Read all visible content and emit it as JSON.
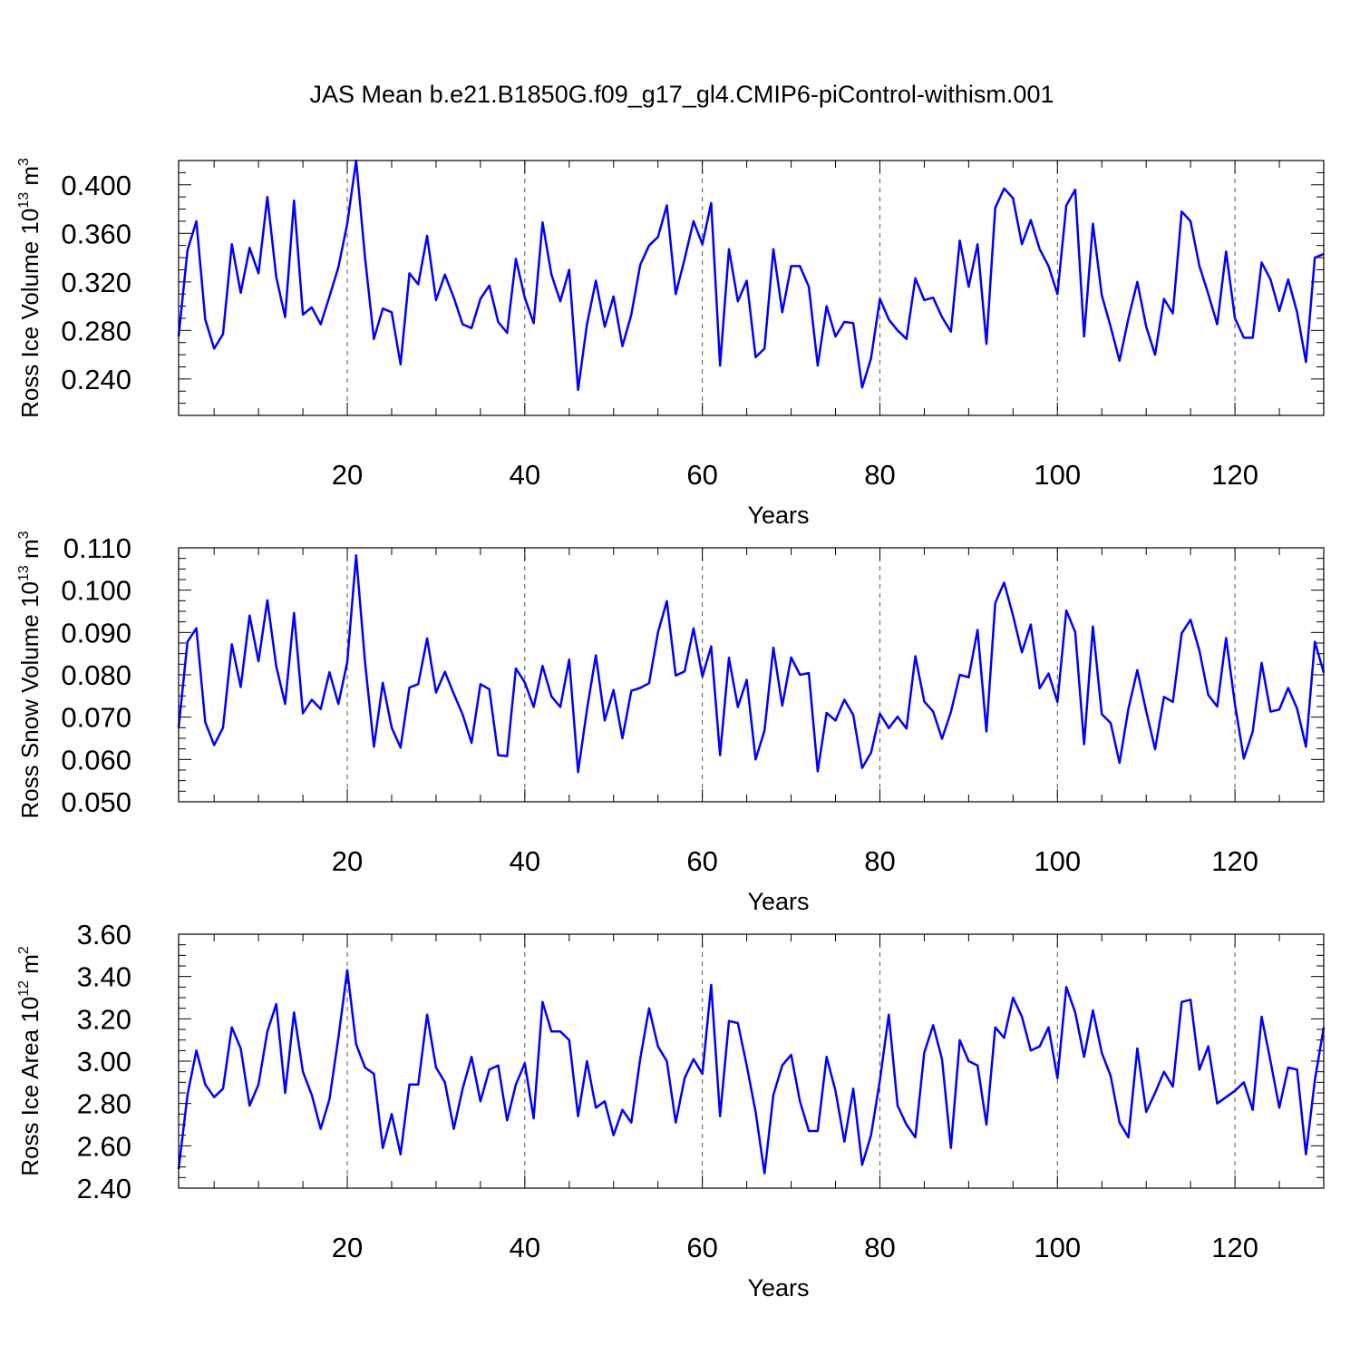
{
  "title": "JAS Mean b.e21.B1850G.f09_g17_gl4.CMIP6-piControl-withism.001",
  "chart_data": [
    {
      "type": "line",
      "ylabel_main": "Ross Ice Volume 10",
      "ylabel_exp": "13",
      "ylabel_unit": " m",
      "ylabel_unit_exp": "3",
      "xlabel": "Years",
      "xlim": [
        1,
        130
      ],
      "ylim": [
        0.21,
        0.42
      ],
      "yticks": [
        0.24,
        0.28,
        0.32,
        0.36,
        0.4
      ],
      "ytick_labels": [
        "0.240",
        "0.280",
        "0.320",
        "0.360",
        "0.400"
      ],
      "xticks": [
        20,
        40,
        60,
        80,
        100,
        120
      ],
      "xtick_labels": [
        "20",
        "40",
        "60",
        "80",
        "100",
        "120"
      ],
      "grid_x": "dashed vertical lines at major x ticks",
      "color": "#0000ff",
      "series": [
        {
          "x_start": 1,
          "values": [
            0.275,
            0.346,
            0.37,
            0.289,
            0.265,
            0.277,
            0.351,
            0.311,
            0.348,
            0.327,
            0.39,
            0.324,
            0.291,
            0.387,
            0.293,
            0.299,
            0.285,
            0.308,
            0.332,
            0.368,
            0.42,
            0.34,
            0.273,
            0.298,
            0.295,
            0.252,
            0.327,
            0.318,
            0.358,
            0.305,
            0.326,
            0.307,
            0.285,
            0.282,
            0.306,
            0.317,
            0.287,
            0.278,
            0.339,
            0.307,
            0.286,
            0.369,
            0.326,
            0.304,
            0.33,
            0.231,
            0.285,
            0.321,
            0.283,
            0.308,
            0.267,
            0.293,
            0.334,
            0.35,
            0.357,
            0.383,
            0.31,
            0.339,
            0.37,
            0.351,
            0.385,
            0.251,
            0.347,
            0.304,
            0.321,
            0.258,
            0.265,
            0.347,
            0.295,
            0.333,
            0.333,
            0.316,
            0.251,
            0.3,
            0.275,
            0.287,
            0.286,
            0.233,
            0.257,
            0.306,
            0.289,
            0.28,
            0.273,
            0.323,
            0.305,
            0.307,
            0.291,
            0.279,
            0.354,
            0.316,
            0.351,
            0.269,
            0.381,
            0.397,
            0.389,
            0.351,
            0.371,
            0.347,
            0.333,
            0.31,
            0.383,
            0.396,
            0.275,
            0.368,
            0.309,
            0.283,
            0.255,
            0.29,
            0.32,
            0.283,
            0.26,
            0.306,
            0.294,
            0.378,
            0.37,
            0.333,
            0.31,
            0.285,
            0.345,
            0.29,
            0.274,
            0.274,
            0.336,
            0.322,
            0.296,
            0.322,
            0.295,
            0.254,
            0.34,
            0.343
          ]
        }
      ]
    },
    {
      "type": "line",
      "ylabel_main": "Ross Snow Volume 10",
      "ylabel_exp": "13",
      "ylabel_unit": " m",
      "ylabel_unit_exp": "3",
      "xlabel": "Years",
      "xlim": [
        1,
        130
      ],
      "ylim": [
        0.05,
        0.11
      ],
      "yticks": [
        0.05,
        0.06,
        0.07,
        0.08,
        0.09,
        0.1,
        0.11
      ],
      "ytick_labels": [
        "0.050",
        "0.060",
        "0.070",
        "0.080",
        "0.090",
        "0.100",
        "0.110"
      ],
      "xticks": [
        20,
        40,
        60,
        80,
        100,
        120
      ],
      "xtick_labels": [
        "20",
        "40",
        "60",
        "80",
        "100",
        "120"
      ],
      "grid_x": "dashed vertical lines at major x ticks",
      "color": "#0000ff",
      "series": [
        {
          "x_start": 1,
          "values": [
            0.0675,
            0.0878,
            0.091,
            0.0688,
            0.0634,
            0.0675,
            0.0872,
            0.0771,
            0.094,
            0.0832,
            0.0976,
            0.082,
            0.0731,
            0.0946,
            0.0709,
            0.0741,
            0.0719,
            0.0806,
            0.0731,
            0.083,
            0.1082,
            0.083,
            0.063,
            0.0781,
            0.0675,
            0.0628,
            0.077,
            0.0778,
            0.0886,
            0.0758,
            0.0807,
            0.0755,
            0.0706,
            0.0639,
            0.0778,
            0.0766,
            0.061,
            0.0608,
            0.0815,
            0.0782,
            0.0724,
            0.0821,
            0.0749,
            0.0724,
            0.0836,
            0.057,
            0.0718,
            0.0846,
            0.0692,
            0.0764,
            0.065,
            0.0762,
            0.0769,
            0.078,
            0.09,
            0.0974,
            0.0798,
            0.0808,
            0.091,
            0.0796,
            0.0867,
            0.061,
            0.084,
            0.0724,
            0.0788,
            0.06,
            0.0668,
            0.0864,
            0.0727,
            0.0841,
            0.08,
            0.0804,
            0.0572,
            0.071,
            0.0692,
            0.0741,
            0.0705,
            0.058,
            0.0616,
            0.0708,
            0.0674,
            0.0701,
            0.0673,
            0.0844,
            0.0737,
            0.0713,
            0.0649,
            0.0712,
            0.08,
            0.0794,
            0.0906,
            0.0666,
            0.097,
            0.1018,
            0.094,
            0.0853,
            0.0919,
            0.0768,
            0.0803,
            0.0736,
            0.0952,
            0.0901,
            0.0636,
            0.0914,
            0.0707,
            0.0686,
            0.0592,
            0.072,
            0.0811,
            0.0714,
            0.0624,
            0.0748,
            0.0736,
            0.0898,
            0.093,
            0.0857,
            0.0752,
            0.0725,
            0.0887,
            0.073,
            0.0602,
            0.0666,
            0.0828,
            0.0713,
            0.0718,
            0.0769,
            0.072,
            0.063,
            0.0878,
            0.0805
          ]
        }
      ]
    },
    {
      "type": "line",
      "ylabel_main": "Ross Ice Area 10",
      "ylabel_exp": "12",
      "ylabel_unit": " m",
      "ylabel_unit_exp": "2",
      "xlabel": "Years",
      "xlim": [
        1,
        130
      ],
      "ylim": [
        2.4,
        3.6
      ],
      "yticks": [
        2.4,
        2.6,
        2.8,
        3.0,
        3.2,
        3.4,
        3.6
      ],
      "ytick_labels": [
        "2.40",
        "2.60",
        "2.80",
        "3.00",
        "3.20",
        "3.40",
        "3.60"
      ],
      "xticks": [
        20,
        40,
        60,
        80,
        100,
        120
      ],
      "xtick_labels": [
        "20",
        "40",
        "60",
        "80",
        "100",
        "120"
      ],
      "grid_x": "dashed vertical lines at major x ticks",
      "color": "#0000ff",
      "series": [
        {
          "x_start": 1,
          "values": [
            2.49,
            2.84,
            3.05,
            2.89,
            2.83,
            2.87,
            3.16,
            3.06,
            2.79,
            2.89,
            3.14,
            3.27,
            2.85,
            3.23,
            2.95,
            2.84,
            2.68,
            2.82,
            3.11,
            3.43,
            3.08,
            2.97,
            2.94,
            2.59,
            2.75,
            2.56,
            2.89,
            2.89,
            3.22,
            2.97,
            2.9,
            2.68,
            2.87,
            3.02,
            2.81,
            2.96,
            2.98,
            2.72,
            2.89,
            2.99,
            2.73,
            3.28,
            3.14,
            3.14,
            3.1,
            2.74,
            3.0,
            2.78,
            2.81,
            2.65,
            2.77,
            2.71,
            3.01,
            3.25,
            3.07,
            3.0,
            2.71,
            2.92,
            3.01,
            2.94,
            3.36,
            2.74,
            3.19,
            3.18,
            2.98,
            2.76,
            2.47,
            2.84,
            2.98,
            3.03,
            2.81,
            2.67,
            2.67,
            3.02,
            2.86,
            2.62,
            2.87,
            2.51,
            2.65,
            2.91,
            3.22,
            2.79,
            2.7,
            2.64,
            3.04,
            3.17,
            3.01,
            2.59,
            3.1,
            3.0,
            2.98,
            2.7,
            3.16,
            3.11,
            3.3,
            3.21,
            3.05,
            3.07,
            3.16,
            2.92,
            3.35,
            3.23,
            3.02,
            3.24,
            3.04,
            2.93,
            2.71,
            2.64,
            3.06,
            2.76,
            2.85,
            2.95,
            2.88,
            3.28,
            3.29,
            2.96,
            3.07,
            2.8,
            2.83,
            2.86,
            2.9,
            2.77,
            3.21,
            3.0,
            2.78,
            2.97,
            2.96,
            2.56,
            2.91,
            3.16
          ]
        }
      ]
    }
  ]
}
